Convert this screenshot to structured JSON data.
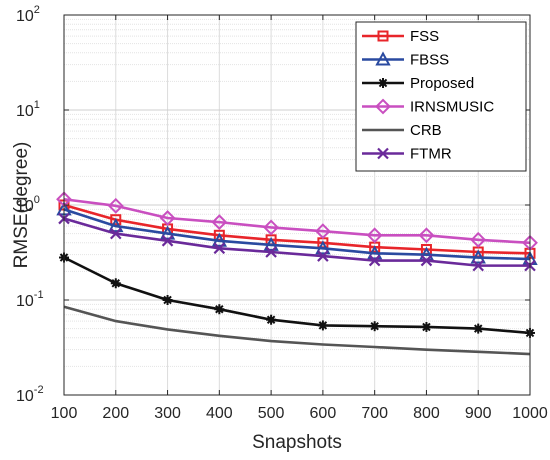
{
  "chart_data": {
    "type": "line",
    "xlabel": "Snapshots",
    "ylabel": "RMSE(degree)",
    "xlim": [
      100,
      1000
    ],
    "ylim": [
      0.01,
      100
    ],
    "yscale": "log",
    "grid": true,
    "legend_position": "top-right",
    "x": [
      100,
      200,
      300,
      400,
      500,
      600,
      700,
      800,
      900,
      1000
    ],
    "x_ticks": [
      "100",
      "200",
      "300",
      "400",
      "500",
      "600",
      "700",
      "800",
      "900",
      "1000"
    ],
    "y_ticks": [
      {
        "value": 0.01,
        "base": "10",
        "exp": "-2"
      },
      {
        "value": 0.1,
        "base": "10",
        "exp": "-1"
      },
      {
        "value": 1,
        "base": "10",
        "exp": "0"
      },
      {
        "value": 10,
        "base": "10",
        "exp": "1"
      },
      {
        "value": 100,
        "base": "10",
        "exp": "2"
      }
    ],
    "series": [
      {
        "name": "FSS",
        "color": "#e8252a",
        "marker": "square",
        "values": [
          1.0,
          0.7,
          0.56,
          0.48,
          0.43,
          0.4,
          0.36,
          0.34,
          0.32,
          0.31
        ]
      },
      {
        "name": "FBSS",
        "color": "#2a4aa0",
        "marker": "triangle",
        "values": [
          0.9,
          0.6,
          0.5,
          0.42,
          0.38,
          0.35,
          0.31,
          0.3,
          0.28,
          0.27
        ]
      },
      {
        "name": "Proposed",
        "color": "#111111",
        "marker": "asterisk",
        "values": [
          0.28,
          0.15,
          0.1,
          0.08,
          0.062,
          0.054,
          0.053,
          0.052,
          0.05,
          0.045
        ]
      },
      {
        "name": "IRNSMUSIC",
        "color": "#c94fc0",
        "marker": "diamond",
        "values": [
          1.15,
          0.98,
          0.73,
          0.66,
          0.58,
          0.53,
          0.48,
          0.48,
          0.43,
          0.4
        ]
      },
      {
        "name": "CRB",
        "color": "#555555",
        "marker": "none",
        "values": [
          0.085,
          0.06,
          0.049,
          0.042,
          0.037,
          0.034,
          0.032,
          0.03,
          0.0285,
          0.027
        ]
      },
      {
        "name": "FTMR",
        "color": "#6a2a9a",
        "marker": "x",
        "values": [
          0.72,
          0.5,
          0.42,
          0.35,
          0.32,
          0.29,
          0.26,
          0.26,
          0.23,
          0.23
        ]
      }
    ]
  }
}
